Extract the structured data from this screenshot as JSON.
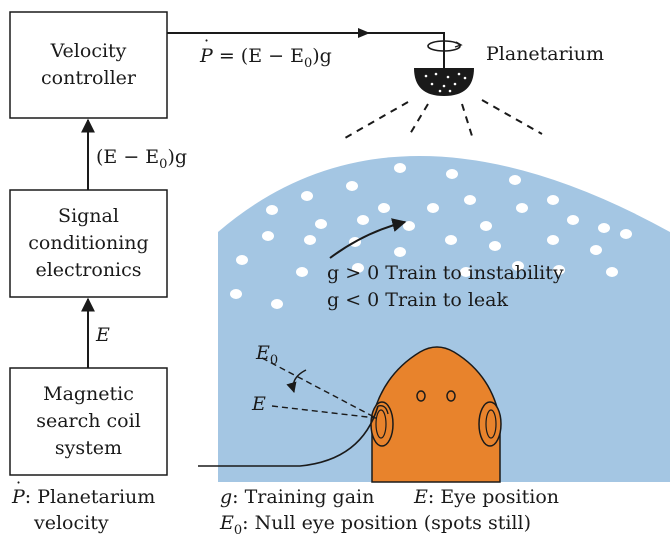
{
  "boxes": {
    "velocity_controller": [
      "Velocity",
      "controller"
    ],
    "signal_conditioning": [
      "Signal",
      "conditioning",
      "electronics"
    ],
    "search_coil": [
      "Magnetic",
      "search coil",
      "system"
    ]
  },
  "labels": {
    "planetarium": "Planetarium",
    "pdot_eq_tail": " = (E − E",
    "pdot_eq_end": ")g",
    "pdot_symbol": "P",
    "error_signal_pre": "(E − E",
    "error_signal_post": ")g",
    "e_signal": "E",
    "e0_eye": "E",
    "e_eye": "E",
    "null_subscript": "0",
    "train_instability": "g > 0 Train to instability",
    "train_leak": "g < 0 Train to leak"
  },
  "legend": {
    "pdot_def_line1": ": Planetarium",
    "pdot_def_line2": "velocity",
    "g_def": ": Training gain",
    "e_def": ": Eye position",
    "e0_def": ": Null eye position (spots still)"
  },
  "colors": {
    "dome": "#a4c6e3",
    "fish": "#e8832c",
    "line": "#1a1a1a",
    "dots": "#ffffff"
  }
}
